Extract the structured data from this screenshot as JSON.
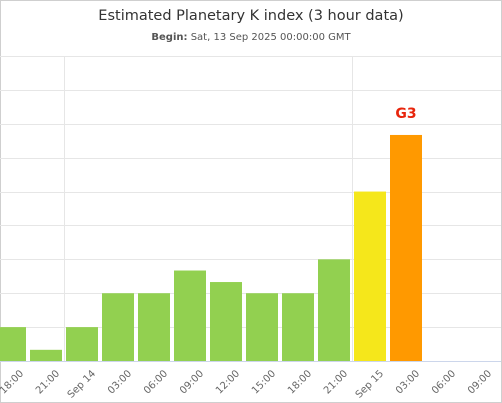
{
  "chart_data": {
    "type": "bar",
    "title": "Estimated Planetary K index (3 hour data)",
    "subtitle_label": "Begin:",
    "subtitle_value": "Sat, 13 Sep 2025 00:00:00 GMT",
    "xlabel": "",
    "ylabel": "",
    "ylim": [
      0,
      9
    ],
    "grid": true,
    "legend": "none",
    "x_tick_labels": [
      "18:00",
      "21:00",
      "Sep 14",
      "03:00",
      "06:00",
      "09:00",
      "12:00",
      "15:00",
      "18:00",
      "21:00",
      "Sep 15",
      "03:00",
      "06:00",
      "09:00"
    ],
    "bars": [
      {
        "start": "2025-09-13 18:00",
        "value": 1.0,
        "color": "#92d050"
      },
      {
        "start": "2025-09-13 21:00",
        "value": 0.33,
        "color": "#92d050"
      },
      {
        "start": "2025-09-14 00:00",
        "value": 1.0,
        "color": "#92d050"
      },
      {
        "start": "2025-09-14 03:00",
        "value": 2.0,
        "color": "#92d050"
      },
      {
        "start": "2025-09-14 06:00",
        "value": 2.0,
        "color": "#92d050"
      },
      {
        "start": "2025-09-14 09:00",
        "value": 2.67,
        "color": "#92d050"
      },
      {
        "start": "2025-09-14 12:00",
        "value": 2.33,
        "color": "#92d050"
      },
      {
        "start": "2025-09-14 15:00",
        "value": 2.0,
        "color": "#92d050"
      },
      {
        "start": "2025-09-14 18:00",
        "value": 2.0,
        "color": "#92d050"
      },
      {
        "start": "2025-09-14 21:00",
        "value": 3.0,
        "color": "#92d050"
      },
      {
        "start": "2025-09-15 00:00",
        "value": 5.0,
        "color": "#f5e71b"
      },
      {
        "start": "2025-09-15 03:00",
        "value": 6.67,
        "color": "#ff9900"
      }
    ],
    "annotations": [
      {
        "text": "G3",
        "bar_index": 11,
        "color": "#e8250c"
      }
    ]
  }
}
